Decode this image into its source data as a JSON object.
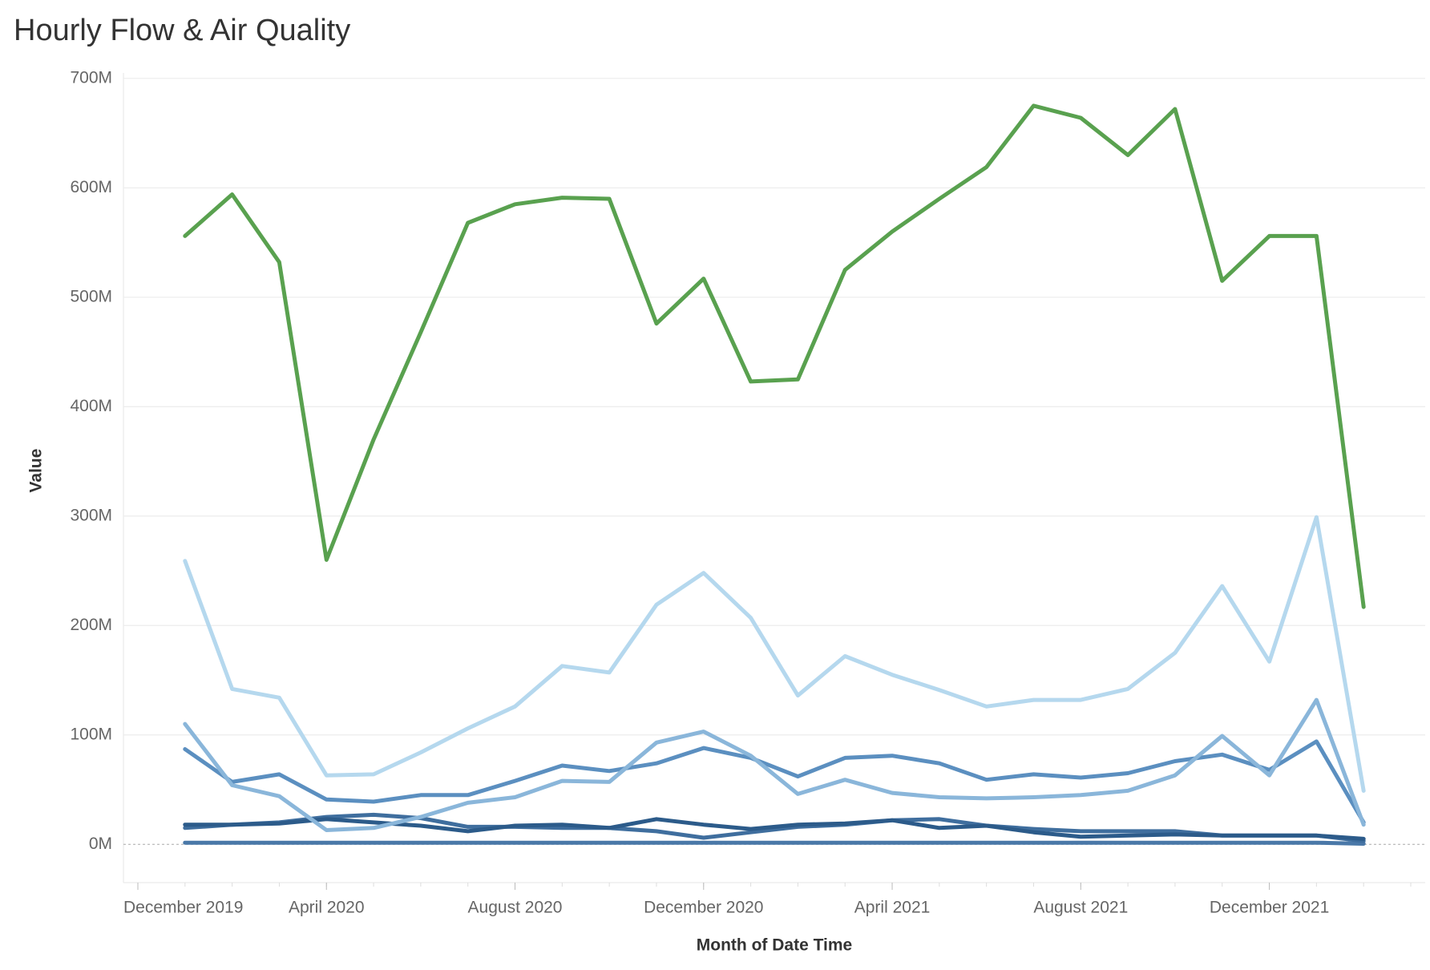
{
  "chart_data": {
    "type": "line",
    "title": "Hourly Flow & Air Quality",
    "x_label": "Month of Date Time",
    "y_label": "Value",
    "x": [
      "2020-01",
      "2020-02",
      "2020-03",
      "2020-04",
      "2020-05",
      "2020-06",
      "2020-07",
      "2020-08",
      "2020-09",
      "2020-10",
      "2020-11",
      "2020-12",
      "2021-01",
      "2021-02",
      "2021-03",
      "2021-04",
      "2021-05",
      "2021-06",
      "2021-07",
      "2021-08",
      "2021-09",
      "2021-10",
      "2021-11",
      "2021-12",
      "2022-01",
      "2022-02"
    ],
    "xlim": [
      "2019-12",
      "2022-03"
    ],
    "xticks": [
      {
        "value": "2019-12",
        "label": "December 2019"
      },
      {
        "value": "2020-04",
        "label": "April 2020"
      },
      {
        "value": "2020-08",
        "label": "August 2020"
      },
      {
        "value": "2020-12",
        "label": "December 2020"
      },
      {
        "value": "2021-04",
        "label": "April 2021"
      },
      {
        "value": "2021-08",
        "label": "August 2021"
      },
      {
        "value": "2021-12",
        "label": "December 2021"
      }
    ],
    "ylim": [
      -35000000,
      705000000
    ],
    "yticks": [
      {
        "value": 0,
        "label": "0M"
      },
      {
        "value": 100000000,
        "label": "100M"
      },
      {
        "value": 200000000,
        "label": "200M"
      },
      {
        "value": 300000000,
        "label": "300M"
      },
      {
        "value": 400000000,
        "label": "400M"
      },
      {
        "value": 500000000,
        "label": "500M"
      },
      {
        "value": 600000000,
        "label": "600M"
      },
      {
        "value": 700000000,
        "label": "700M"
      }
    ],
    "grid": true,
    "series": [
      {
        "color": "#4a78a8",
        "values": [
          1500000,
          1500000,
          1500000,
          1500000,
          1500000,
          1500000,
          1500000,
          1500000,
          1500000,
          1500000,
          1500000,
          1500000,
          1500000,
          1500000,
          1500000,
          1500000,
          1500000,
          1500000,
          1500000,
          1500000,
          1500000,
          1500000,
          1500000,
          1500000,
          1500000,
          500000
        ]
      },
      {
        "color": "#3f6e9e",
        "values": [
          15000000,
          18000000,
          20000000,
          25000000,
          27000000,
          24000000,
          16000000,
          16000000,
          15000000,
          15000000,
          12000000,
          6000000,
          11000000,
          16000000,
          18000000,
          22000000,
          23000000,
          17000000,
          14000000,
          12000000,
          12000000,
          12000000,
          8000000,
          8000000,
          8000000,
          3000000
        ]
      },
      {
        "color": "#2c5b8a",
        "values": [
          18000000,
          18000000,
          19000000,
          23000000,
          20000000,
          17000000,
          12000000,
          17000000,
          18000000,
          15000000,
          23000000,
          18000000,
          14000000,
          18000000,
          19000000,
          22000000,
          15000000,
          17000000,
          11000000,
          7000000,
          8000000,
          9000000,
          8000000,
          8000000,
          8000000,
          5000000
        ]
      },
      {
        "color": "#5b8fc0",
        "values": [
          87000000,
          57000000,
          64000000,
          41000000,
          39000000,
          45000000,
          45000000,
          58000000,
          72000000,
          67000000,
          74000000,
          88000000,
          79000000,
          62000000,
          79000000,
          81000000,
          74000000,
          59000000,
          64000000,
          61000000,
          65000000,
          76000000,
          82000000,
          68000000,
          94000000,
          20000000
        ]
      },
      {
        "color": "#8ab6da",
        "values": [
          110000000,
          54000000,
          44000000,
          13000000,
          15000000,
          25000000,
          38000000,
          43000000,
          58000000,
          57000000,
          93000000,
          103000000,
          81000000,
          46000000,
          59000000,
          47000000,
          43000000,
          42000000,
          43000000,
          45000000,
          49000000,
          63000000,
          99000000,
          63000000,
          132000000,
          18000000
        ]
      },
      {
        "color": "#b5d8ee",
        "values": [
          259000000,
          142000000,
          134000000,
          63000000,
          64000000,
          84000000,
          106000000,
          126000000,
          163000000,
          157000000,
          219000000,
          248000000,
          207000000,
          136000000,
          172000000,
          155000000,
          141000000,
          126000000,
          132000000,
          132000000,
          142000000,
          175000000,
          236000000,
          167000000,
          299000000,
          49000000
        ]
      },
      {
        "color": "#59a14f",
        "values": [
          556000000,
          594000000,
          532000000,
          260000000,
          370000000,
          468000000,
          568000000,
          585000000,
          591000000,
          590000000,
          476000000,
          517000000,
          423000000,
          425000000,
          525000000,
          560000000,
          590000000,
          619000000,
          675000000,
          664000000,
          630000000,
          672000000,
          515000000,
          556000000,
          556000000,
          217000000
        ]
      }
    ]
  }
}
